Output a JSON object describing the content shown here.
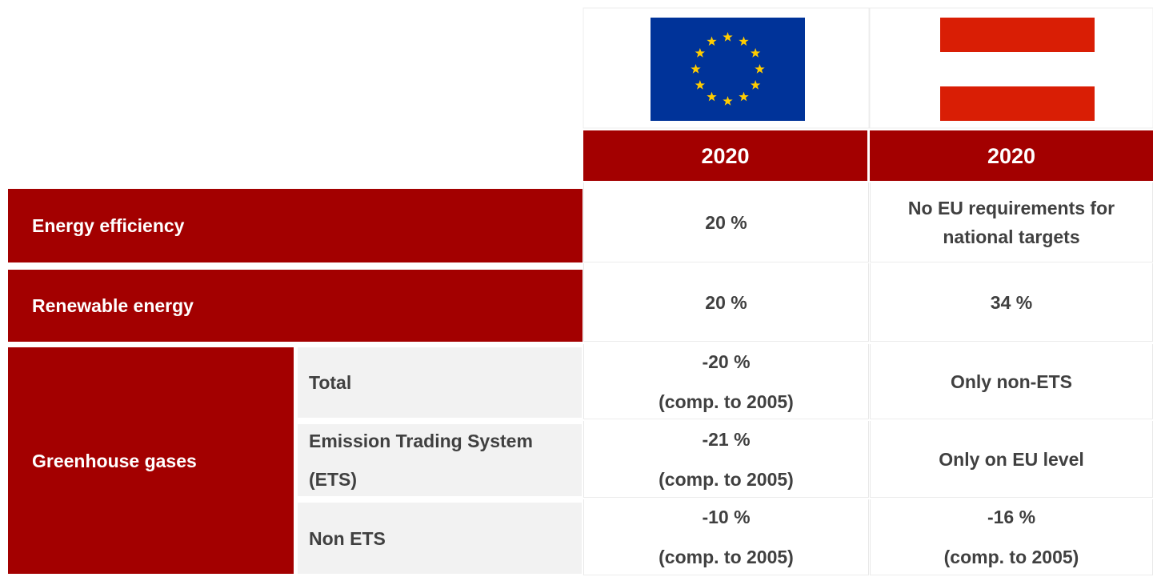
{
  "table": {
    "headers": [
      "2020",
      "2020"
    ],
    "rows": [
      {
        "label": "Energy efficiency",
        "eu": [
          "20 %"
        ],
        "national": [
          "No EU requirements for",
          "national targets"
        ]
      },
      {
        "label": "Renewable energy",
        "eu": [
          "20 %"
        ],
        "national": [
          "34 %"
        ]
      }
    ],
    "group": {
      "label": "Greenhouse gases",
      "rows": [
        {
          "label": [
            "Total"
          ],
          "eu": [
            "-20 %",
            "(comp. to 2005)"
          ],
          "national": [
            "Only non-ETS"
          ]
        },
        {
          "label": [
            "Emission Trading System",
            "(ETS)"
          ],
          "eu": [
            "-21 %",
            "(comp. to 2005)"
          ],
          "national": [
            "Only on EU level"
          ]
        },
        {
          "label": [
            "Non ETS"
          ],
          "eu": [
            "-10 %",
            "(comp. to 2005)"
          ],
          "national": [
            "-16 %",
            "(comp. to 2005)"
          ]
        }
      ]
    }
  }
}
